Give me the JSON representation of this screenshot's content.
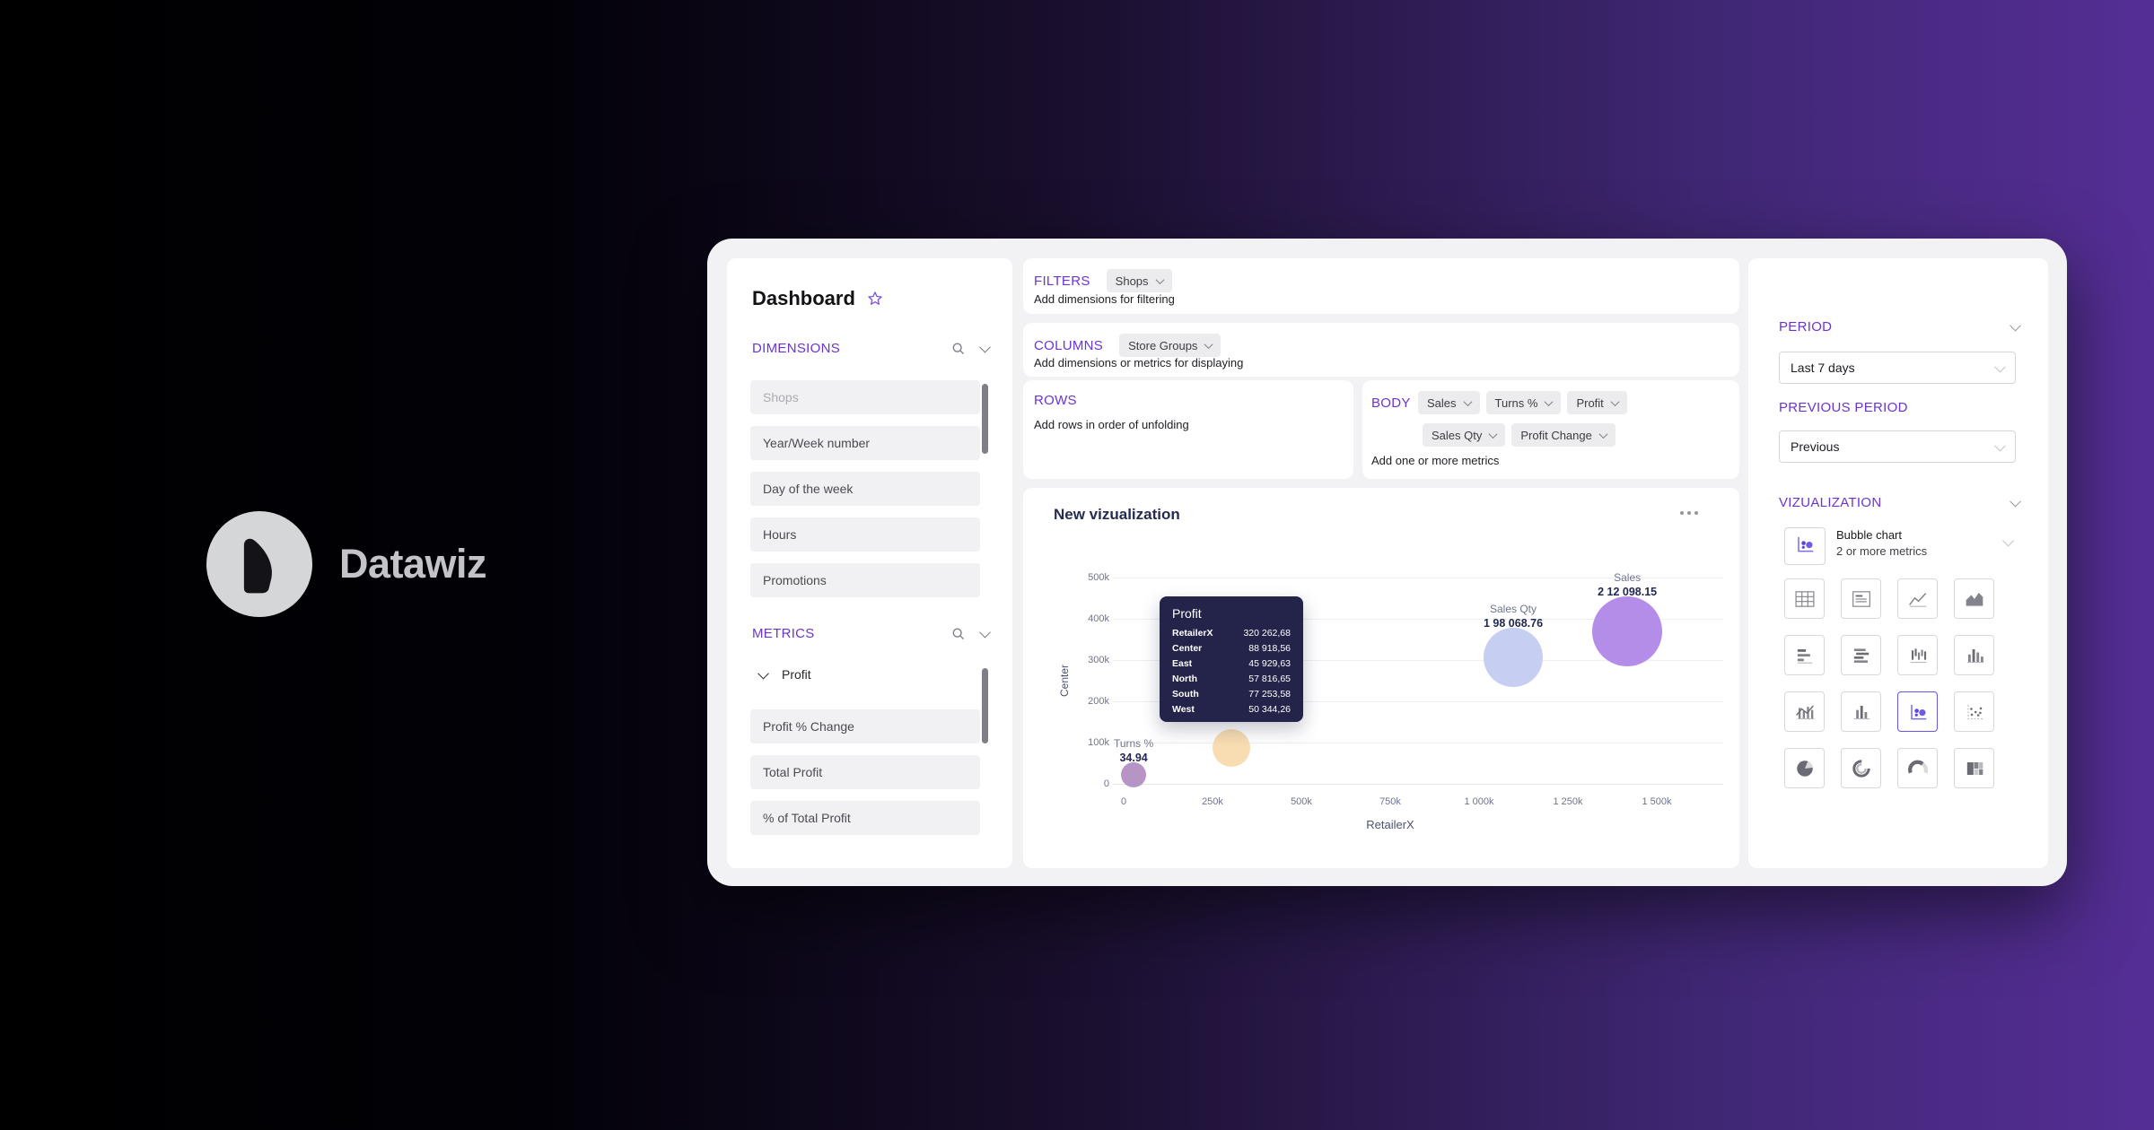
{
  "brand": {
    "name": "Datawiz"
  },
  "dashboard": {
    "title": "Dashboard",
    "dimensions": {
      "label": "DIMENSIONS",
      "items": [
        {
          "label": "Shops",
          "muted": true
        },
        {
          "label": "Year/Week number"
        },
        {
          "label": "Day of the week"
        },
        {
          "label": "Hours"
        },
        {
          "label": "Promotions"
        }
      ]
    },
    "metrics": {
      "label": "METRICS",
      "group": {
        "label": "Profit"
      },
      "items": [
        {
          "label": "Profit % Change"
        },
        {
          "label": "Total Profit"
        },
        {
          "label": "% of Total Profit"
        }
      ]
    },
    "filters": {
      "label": "FILTERS",
      "chips": [
        {
          "label": "Shops"
        }
      ],
      "hint": "Add dimensions for filtering"
    },
    "columns": {
      "label": "COLUMNS",
      "chips": [
        {
          "label": "Store Groups"
        }
      ],
      "hint": "Add dimensions or metrics for displaying"
    },
    "rows": {
      "label": "ROWS",
      "hint": "Add rows in order of unfolding"
    },
    "body": {
      "label": "BODY",
      "chip_rows": [
        [
          {
            "label": "Sales"
          },
          {
            "label": "Turns %"
          },
          {
            "label": "Profit"
          }
        ],
        [
          {
            "label": "Sales Qty"
          },
          {
            "label": "Profit Change"
          }
        ]
      ],
      "hint": "Add one or more metrics"
    },
    "period": {
      "label": "PERIOD",
      "value": "Last 7 days"
    },
    "previous_period": {
      "label": "PREVIOUS PERIOD",
      "value": "Previous"
    },
    "visualization": {
      "label": "VIZUALIZATION",
      "selected": {
        "title": "Bubble chart",
        "subtitle": "2 or more metrics"
      },
      "icons": [
        {
          "name": "table-icon"
        },
        {
          "name": "report-icon"
        },
        {
          "name": "line-chart-icon"
        },
        {
          "name": "area-chart-icon"
        },
        {
          "name": "bar-horizontal-icon"
        },
        {
          "name": "bar-horizontal-alt-icon"
        },
        {
          "name": "column-sparse-icon"
        },
        {
          "name": "column-chart-icon"
        },
        {
          "name": "combo-chart-icon"
        },
        {
          "name": "grouped-column-icon"
        },
        {
          "name": "bubble-chart-icon",
          "selected": true
        },
        {
          "name": "scatter-plot-icon"
        },
        {
          "name": "pie-chart-icon"
        },
        {
          "name": "donut-chart-icon"
        },
        {
          "name": "gauge-chart-icon"
        },
        {
          "name": "treemap-icon"
        }
      ]
    }
  },
  "chart_data": {
    "type": "bubble",
    "title": "New vizualization",
    "xlabel": "RetailerX",
    "ylabel": "Center",
    "x_ticks": [
      "0",
      "250k",
      "500k",
      "750k",
      "1 000k",
      "1 250k",
      "1 500k"
    ],
    "y_ticks": [
      "500k",
      "400k",
      "300k",
      "200k",
      "100k",
      "0"
    ],
    "xlim_k": [
      0,
      1500
    ],
    "ylim_k": [
      0,
      500
    ],
    "grid": "horizontal",
    "bubbles": [
      {
        "metric": "Turns %",
        "value_label": "34.94",
        "x_k": 28,
        "y_k": 22,
        "radius": 14,
        "color": "#b695c6"
      },
      {
        "metric": "",
        "value_label": "",
        "x_k": 303,
        "y_k": 87,
        "radius": 21,
        "color": "#f8ddb2"
      },
      {
        "metric": "Sales Qty",
        "value_label": "1 98 068.76",
        "x_k": 1096,
        "y_k": 307,
        "radius": 33,
        "color": "#c6cef2"
      },
      {
        "metric": "Sales",
        "value_label": "2 12 098.15",
        "x_k": 1417,
        "y_k": 370,
        "radius": 39,
        "color": "#b48de9"
      }
    ],
    "tooltip": {
      "title": "Profit",
      "rows": [
        [
          "RetailerX",
          "320 262,68"
        ],
        [
          "Center",
          "88 918,56"
        ],
        [
          "East",
          "45 929,63"
        ],
        [
          "North",
          "57 816,65"
        ],
        [
          "South",
          "77 253,58"
        ],
        [
          "West",
          "50 344,26"
        ]
      ]
    }
  },
  "colors": {
    "accent": "#6b34d6",
    "window_bg": "#f2f2f5",
    "tooltip_bg": "#24244a",
    "selected_border": "#6556e8",
    "bg_gradient_end": "#552e95"
  }
}
